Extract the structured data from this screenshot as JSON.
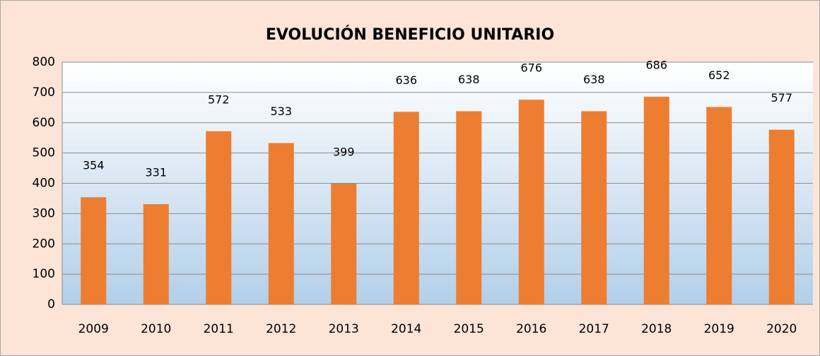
{
  "chart_data": {
    "type": "bar",
    "title": "EVOLUCIÓN BENEFICIO UNITARIO",
    "categories": [
      "2009",
      "2010",
      "2011",
      "2012",
      "2013",
      "2014",
      "2015",
      "2016",
      "2017",
      "2018",
      "2019",
      "2020"
    ],
    "values": [
      354,
      331,
      572,
      533,
      399,
      636,
      638,
      676,
      638,
      686,
      652,
      577
    ],
    "color": "#ed7d31",
    "ylim": [
      0,
      800
    ],
    "yticks": [
      0,
      100,
      200,
      300,
      400,
      500,
      600,
      700,
      800
    ],
    "grid": true
  }
}
